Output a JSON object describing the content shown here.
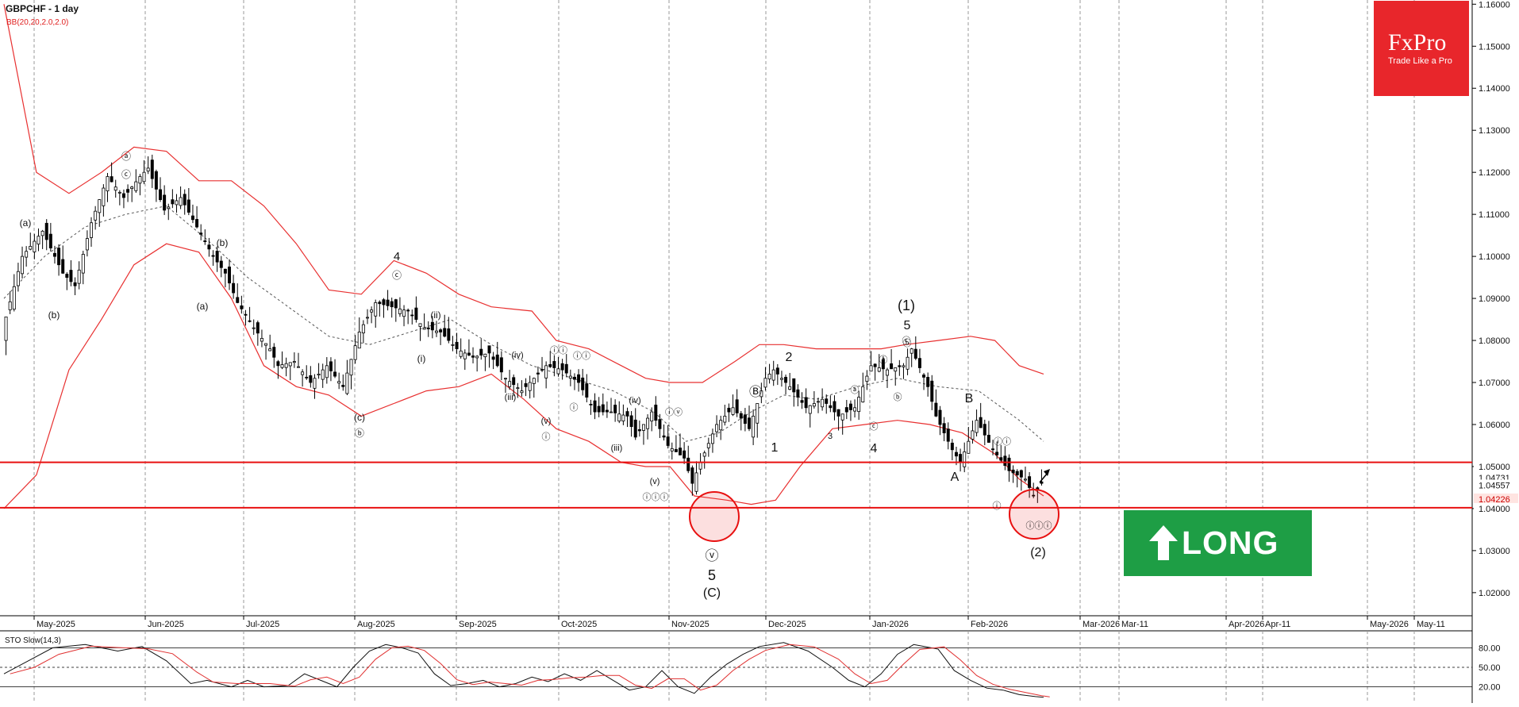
{
  "header": {
    "symbol_title": "GBPCHF - 1 day",
    "indicator": "BB(20,20,2.0,2.0)"
  },
  "brand": {
    "name": "FxPro",
    "tagline": "Trade Like a Pro",
    "color": "#e8262b"
  },
  "signal": {
    "label": "LONG",
    "color": "#1e9e45",
    "icon": "up-arrow-icon"
  },
  "oscillator": {
    "title": "STO Slow(14,3)",
    "levels": [
      "80.00",
      "50.00",
      "20.00"
    ]
  },
  "chart_data": {
    "type": "candlestick",
    "title": "GBPCHF - 1 day",
    "y_ticks": [
      "1.16000",
      "1.15000",
      "1.14000",
      "1.13000",
      "1.12000",
      "1.11000",
      "1.10000",
      "1.09000",
      "1.08000",
      "1.07000",
      "1.06000",
      "1.05000",
      "1.04000",
      "1.03000",
      "1.02000"
    ],
    "x_ticks": [
      "May-2025",
      "Jun-2025",
      "Jul-2025",
      "Aug-2025",
      "Sep-2025",
      "Oct-2025",
      "Nov-2025",
      "Dec-2025",
      "Jan-2026",
      "Feb-2026",
      "Mar-2026",
      "Mar-11",
      "Apr-2026",
      "Apr-11",
      "May-2026",
      "May-11"
    ],
    "price_tags": [
      "1.05000",
      "1.04731",
      "1.04557",
      "1.04226",
      "1.04000"
    ],
    "current_price": "1.04226",
    "grid": true,
    "horizontal_levels": [
      1.051,
      1.0402
    ],
    "price_path": [
      [
        0,
        1.082
      ],
      [
        5,
        1.1
      ],
      [
        10,
        1.106
      ],
      [
        15,
        1.096
      ],
      [
        18,
        1.093
      ],
      [
        22,
        1.108
      ],
      [
        26,
        1.119
      ],
      [
        30,
        1.114
      ],
      [
        34,
        1.119
      ],
      [
        36,
        1.121
      ],
      [
        40,
        1.111
      ],
      [
        44,
        1.114
      ],
      [
        48,
        1.107
      ],
      [
        52,
        1.1
      ],
      [
        55,
        1.096
      ],
      [
        58,
        1.089
      ],
      [
        62,
        1.083
      ],
      [
        66,
        1.078
      ],
      [
        68,
        1.074
      ],
      [
        72,
        1.075
      ],
      [
        76,
        1.07
      ],
      [
        80,
        1.074
      ],
      [
        84,
        1.069
      ],
      [
        88,
        1.082
      ],
      [
        92,
        1.089
      ],
      [
        96,
        1.088
      ],
      [
        100,
        1.087
      ],
      [
        104,
        1.083
      ],
      [
        108,
        1.082
      ],
      [
        112,
        1.078
      ],
      [
        116,
        1.076
      ],
      [
        120,
        1.077
      ],
      [
        124,
        1.071
      ],
      [
        128,
        1.068
      ],
      [
        130,
        1.07
      ],
      [
        134,
        1.074
      ],
      [
        138,
        1.073
      ],
      [
        142,
        1.07
      ],
      [
        146,
        1.063
      ],
      [
        150,
        1.063
      ],
      [
        154,
        1.062
      ],
      [
        156,
        1.057
      ],
      [
        160,
        1.063
      ],
      [
        164,
        1.055
      ],
      [
        168,
        1.052
      ],
      [
        170,
        1.046
      ],
      [
        172,
        1.051
      ],
      [
        176,
        1.06
      ],
      [
        180,
        1.064
      ],
      [
        184,
        1.059
      ],
      [
        188,
        1.071
      ],
      [
        190,
        1.073
      ],
      [
        194,
        1.069
      ],
      [
        198,
        1.064
      ],
      [
        202,
        1.066
      ],
      [
        206,
        1.062
      ],
      [
        210,
        1.064
      ],
      [
        214,
        1.074
      ],
      [
        218,
        1.073
      ],
      [
        222,
        1.074
      ],
      [
        224,
        1.078
      ],
      [
        228,
        1.069
      ],
      [
        230,
        1.062
      ],
      [
        234,
        1.054
      ],
      [
        236,
        1.051
      ],
      [
        240,
        1.061
      ],
      [
        244,
        1.054
      ],
      [
        248,
        1.049
      ],
      [
        252,
        1.047
      ],
      [
        254,
        1.043
      ],
      [
        256,
        1.046
      ]
    ],
    "middle_band": [
      [
        0,
        1.09
      ],
      [
        10,
        1.1
      ],
      [
        20,
        1.107
      ],
      [
        30,
        1.11
      ],
      [
        40,
        1.112
      ],
      [
        50,
        1.104
      ],
      [
        60,
        1.095
      ],
      [
        70,
        1.088
      ],
      [
        80,
        1.081
      ],
      [
        90,
        1.079
      ],
      [
        100,
        1.082
      ],
      [
        110,
        1.085
      ],
      [
        120,
        1.079
      ],
      [
        130,
        1.074
      ],
      [
        140,
        1.071
      ],
      [
        150,
        1.068
      ],
      [
        160,
        1.063
      ],
      [
        168,
        1.056
      ],
      [
        176,
        1.058
      ],
      [
        184,
        1.063
      ],
      [
        192,
        1.067
      ],
      [
        200,
        1.066
      ],
      [
        210,
        1.069
      ],
      [
        220,
        1.071
      ],
      [
        230,
        1.069
      ],
      [
        240,
        1.068
      ],
      [
        250,
        1.061
      ],
      [
        256,
        1.056
      ]
    ],
    "upper_band": [
      [
        0,
        1.16
      ],
      [
        8,
        1.12
      ],
      [
        16,
        1.115
      ],
      [
        24,
        1.12
      ],
      [
        32,
        1.126
      ],
      [
        40,
        1.125
      ],
      [
        48,
        1.118
      ],
      [
        56,
        1.118
      ],
      [
        64,
        1.112
      ],
      [
        72,
        1.103
      ],
      [
        80,
        1.092
      ],
      [
        88,
        1.091
      ],
      [
        96,
        1.099
      ],
      [
        104,
        1.096
      ],
      [
        112,
        1.091
      ],
      [
        120,
        1.088
      ],
      [
        130,
        1.087
      ],
      [
        136,
        1.08
      ],
      [
        144,
        1.078
      ],
      [
        152,
        1.074
      ],
      [
        158,
        1.071
      ],
      [
        164,
        1.07
      ],
      [
        172,
        1.07
      ],
      [
        180,
        1.075
      ],
      [
        186,
        1.079
      ],
      [
        192,
        1.079
      ],
      [
        200,
        1.078
      ],
      [
        208,
        1.078
      ],
      [
        216,
        1.078
      ],
      [
        222,
        1.079
      ],
      [
        230,
        1.08
      ],
      [
        238,
        1.081
      ],
      [
        244,
        1.08
      ],
      [
        250,
        1.074
      ],
      [
        256,
        1.072
      ]
    ],
    "lower_band": [
      [
        0,
        1.04
      ],
      [
        8,
        1.048
      ],
      [
        16,
        1.073
      ],
      [
        24,
        1.085
      ],
      [
        32,
        1.098
      ],
      [
        40,
        1.103
      ],
      [
        48,
        1.101
      ],
      [
        56,
        1.09
      ],
      [
        64,
        1.074
      ],
      [
        72,
        1.069
      ],
      [
        80,
        1.067
      ],
      [
        88,
        1.062
      ],
      [
        96,
        1.065
      ],
      [
        104,
        1.068
      ],
      [
        112,
        1.069
      ],
      [
        120,
        1.072
      ],
      [
        128,
        1.066
      ],
      [
        136,
        1.059
      ],
      [
        144,
        1.056
      ],
      [
        152,
        1.051
      ],
      [
        158,
        1.05
      ],
      [
        164,
        1.05
      ],
      [
        170,
        1.043
      ],
      [
        178,
        1.042
      ],
      [
        184,
        1.041
      ],
      [
        190,
        1.042
      ],
      [
        196,
        1.05
      ],
      [
        204,
        1.059
      ],
      [
        212,
        1.06
      ],
      [
        220,
        1.061
      ],
      [
        228,
        1.06
      ],
      [
        236,
        1.058
      ],
      [
        244,
        1.053
      ],
      [
        250,
        1.047
      ],
      [
        256,
        1.043
      ]
    ],
    "stochastic": [
      [
        0,
        40
      ],
      [
        6,
        60
      ],
      [
        12,
        80
      ],
      [
        20,
        85
      ],
      [
        28,
        75
      ],
      [
        34,
        82
      ],
      [
        40,
        60
      ],
      [
        46,
        25
      ],
      [
        50,
        30
      ],
      [
        56,
        20
      ],
      [
        60,
        30
      ],
      [
        64,
        20
      ],
      [
        70,
        22
      ],
      [
        74,
        40
      ],
      [
        78,
        30
      ],
      [
        82,
        20
      ],
      [
        86,
        50
      ],
      [
        90,
        75
      ],
      [
        94,
        85
      ],
      [
        98,
        80
      ],
      [
        102,
        72
      ],
      [
        106,
        40
      ],
      [
        110,
        22
      ],
      [
        114,
        25
      ],
      [
        118,
        30
      ],
      [
        122,
        20
      ],
      [
        126,
        25
      ],
      [
        130,
        35
      ],
      [
        134,
        28
      ],
      [
        138,
        40
      ],
      [
        142,
        30
      ],
      [
        146,
        45
      ],
      [
        150,
        30
      ],
      [
        154,
        15
      ],
      [
        158,
        20
      ],
      [
        162,
        45
      ],
      [
        166,
        20
      ],
      [
        170,
        10
      ],
      [
        174,
        35
      ],
      [
        178,
        55
      ],
      [
        182,
        70
      ],
      [
        186,
        82
      ],
      [
        192,
        88
      ],
      [
        198,
        75
      ],
      [
        204,
        50
      ],
      [
        208,
        30
      ],
      [
        212,
        20
      ],
      [
        216,
        40
      ],
      [
        220,
        70
      ],
      [
        224,
        85
      ],
      [
        230,
        78
      ],
      [
        234,
        45
      ],
      [
        238,
        30
      ],
      [
        242,
        18
      ],
      [
        246,
        15
      ],
      [
        250,
        8
      ],
      [
        254,
        5
      ],
      [
        256,
        4
      ]
    ],
    "wave_labels": [
      "(a)",
      "(b)",
      "ⓐ",
      "ⓒ",
      "(b)",
      "(a)",
      "(c)",
      "ⓑ",
      "4",
      "ⓒ",
      "(ii)",
      "(i)",
      "(iii)",
      "(iv)",
      "ⓘⓘ",
      "ⓘⓘ",
      "ⓘ",
      "(v)",
      "ⓘ",
      "(iv)",
      "(iii)",
      "ⓘⓥ",
      "(v)",
      "ⓘⓘⓘ",
      "ⓥ",
      "5",
      "(C)",
      "Ⓑ",
      "1",
      "2",
      "3",
      "ⓐ",
      "ⓑ",
      "ⓒ",
      "4",
      "ⓐ",
      "ⓑ",
      "ⓒ",
      "(1)",
      "5",
      "B",
      "A",
      "ⓘⓘ",
      "ⓘ",
      "ⓘⓘⓘ",
      "(2)"
    ]
  }
}
